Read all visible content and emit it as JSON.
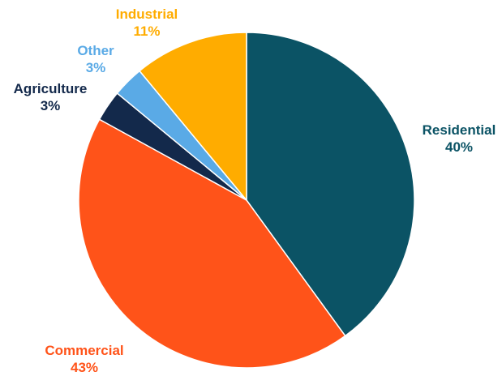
{
  "chart_data": {
    "type": "pie",
    "title": "",
    "slices": [
      {
        "label": "Residential",
        "value": 40,
        "value_label": "40%",
        "color": "#0b5365"
      },
      {
        "label": "Commercial",
        "value": 43,
        "value_label": "43%",
        "color": "#ff5319"
      },
      {
        "label": "Agriculture",
        "value": 3,
        "value_label": "3%",
        "color": "#13294b"
      },
      {
        "label": "Other",
        "value": 3,
        "value_label": "3%",
        "color": "#5aaae6"
      },
      {
        "label": "Industrial",
        "value": 11,
        "value_label": "11%",
        "color": "#ffac00"
      }
    ],
    "start": "12 o'clock",
    "direction": "clockwise",
    "legend": "none (labels placed around pie)"
  }
}
